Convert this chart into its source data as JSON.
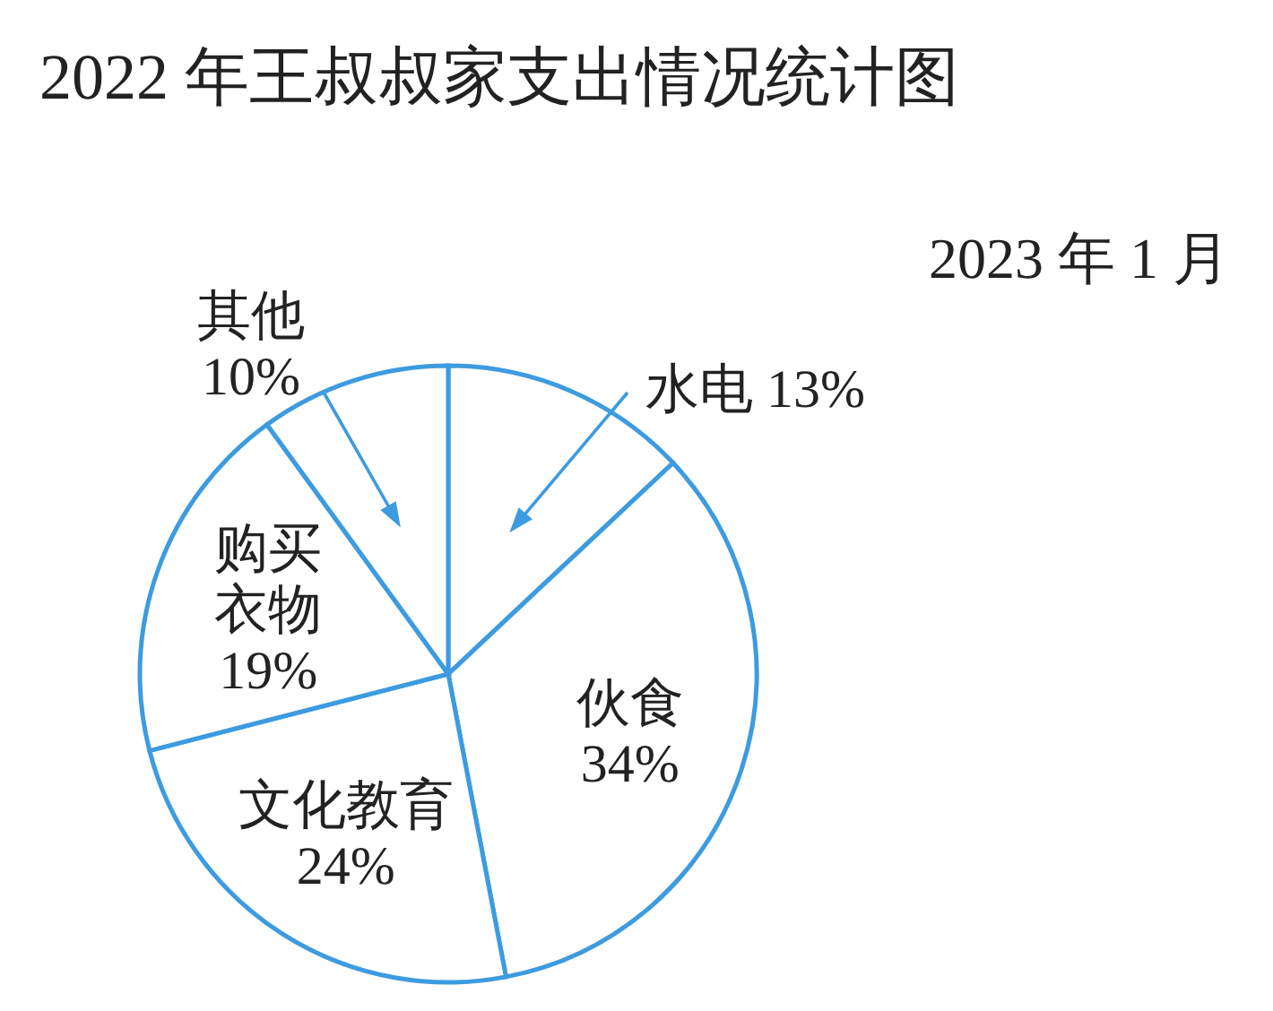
{
  "chart_data": {
    "type": "pie",
    "title": "2022 年王叔叔家支出情况统计图",
    "subtitle": "2023 年 1 月",
    "categories": [
      "水电",
      "伙食",
      "文化教育",
      "购买衣物",
      "其他"
    ],
    "values": [
      13,
      34,
      24,
      19,
      10
    ],
    "value_labels": [
      "13%",
      "34%",
      "24%",
      "19%",
      "10%"
    ],
    "colors": [
      "#ffffff",
      "#ffffff",
      "#ffffff",
      "#ffffff",
      "#ffffff"
    ]
  }
}
